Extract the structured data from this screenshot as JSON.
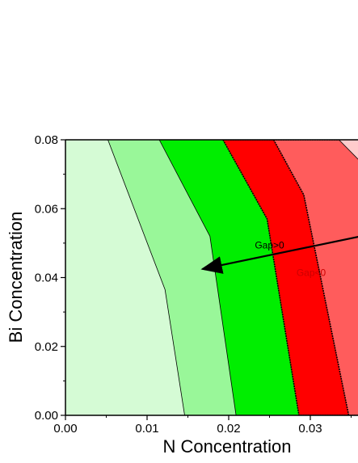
{
  "chart_data": {
    "type": "area",
    "xlabel": "N Concentration",
    "ylabel": "Bi Concentration",
    "xlim": [
      0.0,
      0.036
    ],
    "ylim": [
      0.0,
      0.08
    ],
    "xticks": [
      "0.00",
      "0.01",
      "0.02",
      "0.03"
    ],
    "yticks": [
      "0.00",
      "0.02",
      "0.04",
      "0.06",
      "0.08"
    ],
    "x_tick_values": [
      0.0,
      0.01,
      0.02,
      0.03
    ],
    "y_tick_values": [
      0.0,
      0.02,
      0.04,
      0.06,
      0.08
    ],
    "regions": [
      {
        "color": "#d5fbd5",
        "boundary": [
          [
            0.0052,
            0.08
          ],
          [
            0.0122,
            0.0365
          ],
          [
            0.0146,
            0.0
          ]
        ]
      },
      {
        "color": "#99f799",
        "boundary": [
          [
            0.0115,
            0.08
          ],
          [
            0.0177,
            0.052
          ],
          [
            0.0209,
            0.0
          ]
        ]
      },
      {
        "color": "#00ee00",
        "boundary": [
          [
            0.0193,
            0.08
          ],
          [
            0.0247,
            0.057
          ],
          [
            0.0286,
            0.0
          ]
        ]
      },
      {
        "color": "#ff0000",
        "boundary": [
          [
            0.0255,
            0.08
          ],
          [
            0.0292,
            0.064
          ],
          [
            0.0347,
            0.0
          ]
        ]
      },
      {
        "color": "#ff5c5c",
        "boundary": [
          [
            0.0335,
            0.08
          ],
          [
            0.036,
            0.074
          ]
        ]
      },
      {
        "color": "#ffcccc",
        "boundary": []
      }
    ],
    "annotations": [
      {
        "text": "Gap>0",
        "color": "#000000",
        "x": 0.0232,
        "y": 0.0485
      },
      {
        "text": "Gap<0",
        "color": "#cc0000",
        "x": 0.0283,
        "y": 0.0405
      }
    ],
    "arrow": {
      "from": [
        0.036,
        0.052
      ],
      "to": [
        0.0158,
        0.042
      ]
    }
  }
}
